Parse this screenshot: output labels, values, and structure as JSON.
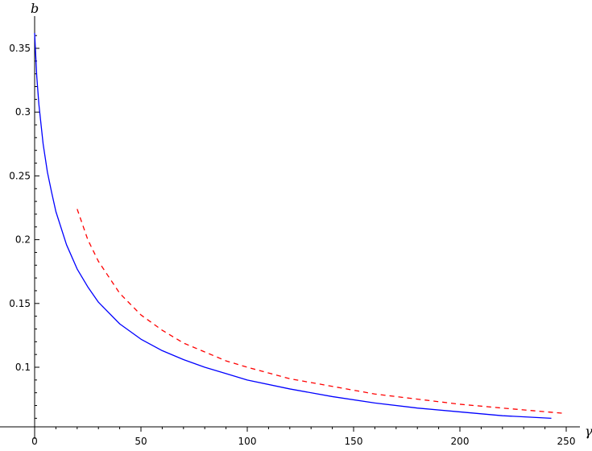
{
  "chart_data": {
    "type": "line",
    "title": "",
    "xlabel": "γ",
    "ylabel": "b",
    "xlim": [
      0,
      250
    ],
    "ylim": [
      0.05,
      0.365
    ],
    "grid": false,
    "x_ticks": [
      0,
      50,
      100,
      150,
      200,
      250
    ],
    "x_tick_labels": [
      "0",
      "50",
      "100",
      "150",
      "200",
      "250"
    ],
    "y_ticks": [
      0.1,
      0.15,
      0.2,
      0.25,
      0.3,
      0.35
    ],
    "y_tick_labels": [
      "0.1",
      "0.15",
      "0.2",
      "0.25",
      "0.3",
      "0.35"
    ],
    "series": [
      {
        "color": "#0000ff",
        "style": "solid",
        "x": [
          0,
          1,
          2,
          4,
          6,
          8,
          10,
          15,
          20,
          25,
          30,
          40,
          50,
          60,
          70,
          80,
          90,
          100,
          120,
          140,
          160,
          180,
          200,
          220,
          243
        ],
        "y": [
          0.362,
          0.328,
          0.306,
          0.275,
          0.253,
          0.237,
          0.222,
          0.196,
          0.177,
          0.163,
          0.151,
          0.134,
          0.122,
          0.113,
          0.106,
          0.1,
          0.095,
          0.09,
          0.083,
          0.077,
          0.072,
          0.068,
          0.065,
          0.062,
          0.06
        ]
      },
      {
        "color": "#ff0000",
        "style": "dashed",
        "x": [
          20,
          25,
          30,
          40,
          50,
          60,
          70,
          80,
          90,
          100,
          120,
          140,
          160,
          180,
          200,
          220,
          248
        ],
        "y": [
          0.224,
          0.2,
          0.183,
          0.158,
          0.141,
          0.129,
          0.119,
          0.112,
          0.105,
          0.1,
          0.091,
          0.085,
          0.079,
          0.075,
          0.071,
          0.068,
          0.064
        ]
      }
    ]
  }
}
